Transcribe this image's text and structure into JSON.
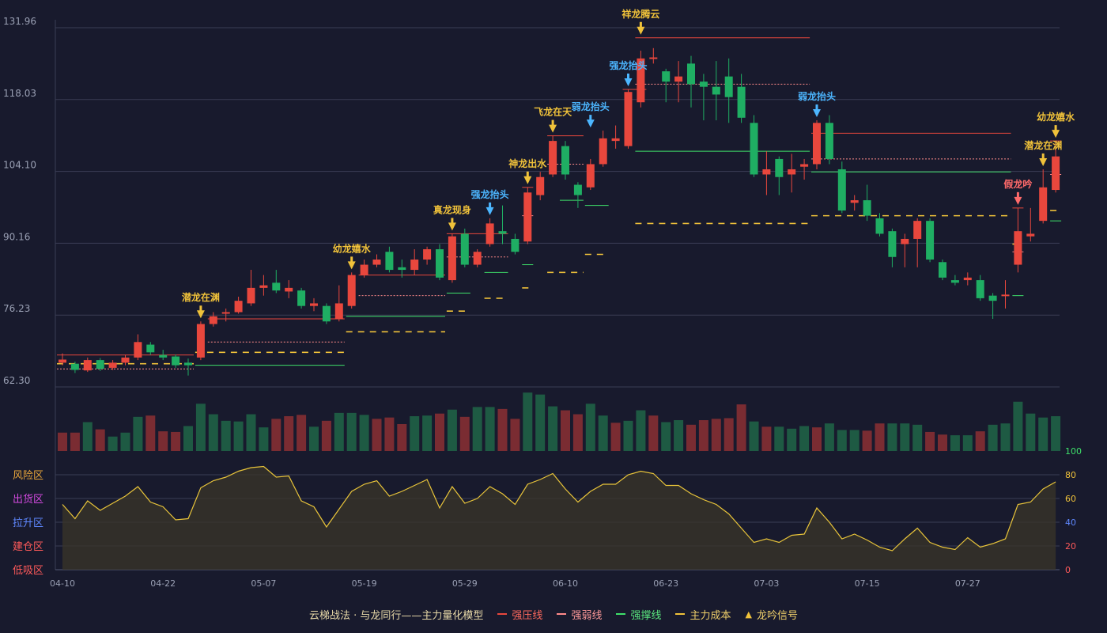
{
  "colors": {
    "up": "#e8473d",
    "down": "#1fae63",
    "resist": "#e8473d",
    "weak": "#ff8a8a",
    "support": "#3ee06a",
    "cost": "#f0c23a",
    "signal_gold": "#f0c23a",
    "signal_blue": "#4cb6ff",
    "signal_red": "#ff6a6a",
    "osc": "#e8c43a"
  },
  "legend": {
    "caption": "云梯战法 · 与龙同行——主力量化模型",
    "items": [
      {
        "label": "强压线",
        "kind": "resist"
      },
      {
        "label": "强弱线",
        "kind": "weak"
      },
      {
        "label": "强撑线",
        "kind": "support"
      },
      {
        "label": "主力成本",
        "kind": "cost"
      },
      {
        "label": "龙吟信号",
        "kind": "signal"
      }
    ]
  },
  "chart_data": {
    "type": "candlestick",
    "price_axis": {
      "ticks": [
        "131.96",
        "118.03",
        "104.10",
        "90.16",
        "76.23",
        "62.30"
      ],
      "range": [
        62.3,
        131.96
      ]
    },
    "x_ticks": [
      {
        "label": "04-10",
        "index": 0
      },
      {
        "label": "04-22",
        "index": 8
      },
      {
        "label": "05-07",
        "index": 16
      },
      {
        "label": "05-19",
        "index": 24
      },
      {
        "label": "05-29",
        "index": 32
      },
      {
        "label": "06-10",
        "index": 40
      },
      {
        "label": "06-23",
        "index": 48
      },
      {
        "label": "07-03",
        "index": 56
      },
      {
        "label": "07-15",
        "index": 64
      },
      {
        "label": "07-27",
        "index": 72
      }
    ],
    "candles": [
      [
        67.0,
        67.6,
        66.5,
        68.8
      ],
      [
        66.8,
        65.6,
        65.0,
        67.2
      ],
      [
        65.5,
        67.5,
        65.2,
        68.0
      ],
      [
        67.5,
        65.8,
        65.4,
        67.9
      ],
      [
        66.0,
        67.0,
        65.6,
        67.5
      ],
      [
        67.0,
        68.0,
        66.5,
        68.5
      ],
      [
        68.0,
        71.0,
        67.5,
        72.5
      ],
      [
        70.5,
        69.0,
        68.5,
        71.0
      ],
      [
        68.5,
        68.0,
        67.5,
        69.5
      ],
      [
        68.2,
        66.5,
        66.0,
        68.6
      ],
      [
        67.0,
        66.5,
        64.5,
        67.8
      ],
      [
        68.0,
        74.5,
        67.5,
        75.0
      ],
      [
        74.5,
        76.0,
        74.0,
        76.8
      ],
      [
        76.5,
        76.8,
        75.0,
        77.5
      ],
      [
        76.8,
        79.0,
        76.5,
        79.8
      ],
      [
        78.5,
        81.5,
        78.0,
        85.0
      ],
      [
        81.5,
        82.0,
        80.0,
        84.0
      ],
      [
        82.5,
        81.0,
        80.5,
        85.0
      ],
      [
        80.8,
        81.5,
        79.5,
        83.0
      ],
      [
        81.0,
        78.0,
        77.5,
        81.5
      ],
      [
        78.0,
        78.5,
        77.0,
        79.5
      ],
      [
        78.0,
        75.0,
        74.5,
        78.5
      ],
      [
        75.5,
        78.5,
        75.0,
        82.0
      ],
      [
        78.0,
        84.0,
        77.5,
        84.5
      ],
      [
        84.0,
        86.0,
        83.5,
        87.0
      ],
      [
        86.0,
        87.0,
        85.5,
        88.0
      ],
      [
        88.5,
        85.0,
        84.5,
        89.5
      ],
      [
        85.5,
        85.0,
        83.5,
        87.0
      ],
      [
        85.0,
        87.0,
        84.0,
        89.0
      ],
      [
        87.0,
        89.0,
        86.0,
        89.5
      ],
      [
        89.0,
        83.5,
        83.0,
        90.0
      ],
      [
        83.0,
        91.5,
        82.5,
        92.0
      ],
      [
        92.0,
        86.0,
        85.5,
        93.0
      ],
      [
        86.0,
        88.5,
        85.5,
        89.0
      ],
      [
        90.0,
        94.0,
        89.5,
        95.0
      ],
      [
        92.5,
        92.0,
        90.0,
        97.5
      ],
      [
        91.0,
        88.5,
        88.0,
        92.0
      ],
      [
        90.5,
        100.0,
        90.0,
        101.0
      ],
      [
        99.5,
        103.0,
        98.5,
        104.0
      ],
      [
        103.5,
        110.0,
        103.0,
        111.0
      ],
      [
        109.0,
        103.5,
        102.5,
        110.0
      ],
      [
        101.5,
        99.5,
        97.0,
        102.0
      ],
      [
        101.0,
        105.5,
        100.5,
        106.5
      ],
      [
        105.5,
        110.5,
        105.0,
        112.0
      ],
      [
        110.0,
        110.5,
        108.5,
        113.0
      ],
      [
        109.0,
        119.5,
        108.5,
        120.0
      ],
      [
        117.5,
        126.0,
        116.5,
        127.5
      ],
      [
        126.0,
        126.2,
        125.0,
        128.0
      ],
      [
        123.5,
        121.5,
        117.5,
        124.0
      ],
      [
        121.5,
        122.5,
        117.5,
        125.5
      ],
      [
        125.0,
        121.0,
        116.5,
        126.5
      ],
      [
        121.5,
        120.5,
        114.0,
        123.0
      ],
      [
        120.5,
        119.0,
        114.0,
        125.5
      ],
      [
        122.5,
        118.5,
        113.5,
        126.0
      ],
      [
        120.5,
        114.5,
        113.5,
        123.0
      ],
      [
        113.5,
        103.5,
        103.0,
        115.0
      ],
      [
        103.5,
        104.5,
        99.5,
        108.0
      ],
      [
        106.5,
        103.0,
        99.5,
        107.0
      ],
      [
        103.5,
        104.5,
        100.0,
        107.5
      ],
      [
        105.0,
        105.5,
        102.5,
        106.5
      ],
      [
        105.5,
        113.5,
        104.5,
        114.0
      ],
      [
        113.5,
        106.5,
        105.5,
        115.0
      ],
      [
        104.5,
        96.5,
        96.0,
        106.0
      ],
      [
        98.0,
        98.5,
        96.5,
        99.5
      ],
      [
        98.5,
        95.5,
        94.5,
        101.5
      ],
      [
        95.0,
        92.0,
        91.5,
        96.0
      ],
      [
        92.5,
        87.5,
        85.5,
        93.0
      ],
      [
        90.0,
        91.0,
        85.5,
        92.0
      ],
      [
        91.0,
        94.5,
        85.5,
        95.0
      ],
      [
        94.5,
        87.0,
        86.5,
        95.0
      ],
      [
        86.5,
        83.5,
        83.0,
        87.0
      ],
      [
        83.0,
        82.5,
        82.0,
        84.0
      ],
      [
        83.0,
        83.5,
        82.0,
        84.5
      ],
      [
        83.0,
        79.5,
        79.0,
        84.0
      ],
      [
        80.0,
        79.0,
        75.5,
        80.5
      ],
      [
        80.0,
        80.2,
        77.5,
        83.0
      ],
      [
        86.0,
        92.5,
        84.5,
        97.0
      ],
      [
        91.5,
        92.0,
        90.5,
        97.0
      ],
      [
        94.5,
        101.0,
        94.0,
        104.5
      ],
      [
        100.5,
        107.0,
        100.0,
        110.0
      ]
    ],
    "volume": [
      [
        0.28,
        "u"
      ],
      [
        0.28,
        "u"
      ],
      [
        0.44,
        "d"
      ],
      [
        0.33,
        "u"
      ],
      [
        0.22,
        "d"
      ],
      [
        0.28,
        "d"
      ],
      [
        0.52,
        "d"
      ],
      [
        0.54,
        "u"
      ],
      [
        0.3,
        "u"
      ],
      [
        0.29,
        "u"
      ],
      [
        0.38,
        "d"
      ],
      [
        0.72,
        "d"
      ],
      [
        0.56,
        "d"
      ],
      [
        0.46,
        "d"
      ],
      [
        0.45,
        "d"
      ],
      [
        0.56,
        "d"
      ],
      [
        0.36,
        "d"
      ],
      [
        0.49,
        "u"
      ],
      [
        0.53,
        "u"
      ],
      [
        0.55,
        "u"
      ],
      [
        0.37,
        "d"
      ],
      [
        0.46,
        "u"
      ],
      [
        0.58,
        "d"
      ],
      [
        0.58,
        "d"
      ],
      [
        0.55,
        "d"
      ],
      [
        0.49,
        "u"
      ],
      [
        0.51,
        "u"
      ],
      [
        0.41,
        "u"
      ],
      [
        0.53,
        "d"
      ],
      [
        0.54,
        "d"
      ],
      [
        0.57,
        "u"
      ],
      [
        0.63,
        "d"
      ],
      [
        0.52,
        "u"
      ],
      [
        0.67,
        "d"
      ],
      [
        0.67,
        "d"
      ],
      [
        0.64,
        "u"
      ],
      [
        0.49,
        "u"
      ],
      [
        0.89,
        "d"
      ],
      [
        0.86,
        "d"
      ],
      [
        0.68,
        "d"
      ],
      [
        0.62,
        "u"
      ],
      [
        0.56,
        "u"
      ],
      [
        0.72,
        "d"
      ],
      [
        0.54,
        "d"
      ],
      [
        0.43,
        "u"
      ],
      [
        0.46,
        "d"
      ],
      [
        0.62,
        "d"
      ],
      [
        0.54,
        "u"
      ],
      [
        0.44,
        "d"
      ],
      [
        0.47,
        "d"
      ],
      [
        0.4,
        "u"
      ],
      [
        0.47,
        "u"
      ],
      [
        0.49,
        "u"
      ],
      [
        0.5,
        "u"
      ],
      [
        0.71,
        "u"
      ],
      [
        0.45,
        "d"
      ],
      [
        0.37,
        "u"
      ],
      [
        0.37,
        "d"
      ],
      [
        0.34,
        "d"
      ],
      [
        0.38,
        "d"
      ],
      [
        0.36,
        "u"
      ],
      [
        0.42,
        "d"
      ],
      [
        0.32,
        "d"
      ],
      [
        0.32,
        "d"
      ],
      [
        0.31,
        "u"
      ],
      [
        0.42,
        "u"
      ],
      [
        0.42,
        "d"
      ],
      [
        0.42,
        "d"
      ],
      [
        0.4,
        "d"
      ],
      [
        0.29,
        "u"
      ],
      [
        0.25,
        "u"
      ],
      [
        0.24,
        "d"
      ],
      [
        0.24,
        "d"
      ],
      [
        0.3,
        "u"
      ],
      [
        0.4,
        "d"
      ],
      [
        0.42,
        "d"
      ],
      [
        0.75,
        "d"
      ],
      [
        0.57,
        "d"
      ],
      [
        0.51,
        "d"
      ],
      [
        0.53,
        "d"
      ]
    ],
    "oscillator": {
      "axis_ticks": [
        "100",
        "80",
        "60",
        "40",
        "20",
        "0"
      ],
      "range": [
        0,
        100
      ],
      "zones": [
        "风险区",
        "出货区",
        "拉升区",
        "建仓区",
        "低吸区"
      ],
      "zone_colors": [
        "#e8a53a",
        "#d44ae0",
        "#5f88ff",
        "#ff5a5a",
        "#ff5a5a"
      ],
      "values": [
        55,
        43,
        58,
        50,
        56,
        62,
        70,
        57,
        53,
        42,
        43,
        69,
        75,
        78,
        83,
        86,
        87,
        78,
        79,
        58,
        53,
        36,
        51,
        66,
        72,
        75,
        62,
        66,
        71,
        76,
        52,
        70,
        56,
        60,
        70,
        64,
        55,
        72,
        76,
        81,
        68,
        57,
        66,
        72,
        72,
        80,
        83,
        81,
        71,
        71,
        64,
        59,
        55,
        47,
        35,
        23,
        26,
        23,
        29,
        30,
        52,
        40,
        26,
        30,
        25,
        19,
        16,
        26,
        35,
        23,
        19,
        17,
        27,
        19,
        22,
        26,
        55,
        57,
        68,
        74
      ]
    },
    "resist_segments": [
      [
        0,
        10,
        68.5
      ],
      [
        12,
        22,
        75.5
      ],
      [
        24,
        30,
        84.0
      ],
      [
        31,
        35,
        92.0
      ],
      [
        37,
        37,
        101.0
      ],
      [
        39,
        41,
        111.0
      ],
      [
        45,
        46,
        120.0
      ],
      [
        46,
        59,
        130.0
      ],
      [
        60,
        75,
        111.5
      ],
      [
        76,
        76,
        97.0
      ],
      [
        79,
        79,
        110.0
      ]
    ],
    "weak_segments": [
      [
        0,
        10,
        65.8
      ],
      [
        12,
        22,
        71.0
      ],
      [
        24,
        30,
        80.0
      ],
      [
        31,
        35,
        87.5
      ],
      [
        37,
        37,
        95.5
      ],
      [
        39,
        41,
        105.5
      ],
      [
        46,
        59,
        121.0
      ],
      [
        60,
        75,
        106.5
      ],
      [
        76,
        76,
        88.5
      ],
      [
        79,
        79,
        103.5
      ]
    ],
    "support_segments": [
      [
        11,
        22,
        66.5
      ],
      [
        23,
        30,
        76.0
      ],
      [
        31,
        32,
        80.5
      ],
      [
        34,
        35,
        84.5
      ],
      [
        37,
        37,
        86.0
      ],
      [
        40,
        41,
        98.5
      ],
      [
        42,
        43,
        97.5
      ],
      [
        46,
        59,
        108.0
      ],
      [
        60,
        75,
        104.0
      ],
      [
        76,
        76,
        80.0
      ],
      [
        79,
        79,
        94.5
      ]
    ],
    "cost_segments": [
      [
        0,
        10,
        66.8
      ],
      [
        11,
        22,
        69.0
      ],
      [
        23,
        30,
        73.0
      ],
      [
        31,
        32,
        77.0
      ],
      [
        34,
        35,
        79.5
      ],
      [
        37,
        37,
        81.5
      ],
      [
        39,
        41,
        84.5
      ],
      [
        42,
        43,
        88.0
      ],
      [
        46,
        59,
        94.0
      ],
      [
        60,
        75,
        95.5
      ],
      [
        76,
        76,
        90.0
      ],
      [
        79,
        79,
        96.5
      ]
    ],
    "signals": [
      {
        "index": 11,
        "label": "潜龙在渊",
        "color": "gold",
        "price": 75.0
      },
      {
        "index": 23,
        "label": "幼龙嬉水",
        "color": "gold",
        "price": 84.5
      },
      {
        "index": 31,
        "label": "真龙现身",
        "color": "gold",
        "price": 92.0
      },
      {
        "index": 34,
        "label": "强龙抬头",
        "color": "blue",
        "price": 95.0
      },
      {
        "index": 37,
        "label": "神龙出水",
        "color": "gold",
        "price": 101.0
      },
      {
        "index": 39,
        "label": "飞龙在天",
        "color": "gold",
        "price": 111.0
      },
      {
        "index": 42,
        "label": "弱龙抬头",
        "color": "blue",
        "price": 112.0
      },
      {
        "index": 45,
        "label": "强龙抬头",
        "color": "blue",
        "price": 120.0
      },
      {
        "index": 46,
        "label": "祥龙腾云",
        "color": "gold",
        "price": 130.0
      },
      {
        "index": 60,
        "label": "弱龙抬头",
        "color": "blue",
        "price": 114.0
      },
      {
        "index": 76,
        "label": "假龙吟",
        "color": "red",
        "price": 97.0
      },
      {
        "index": 78,
        "label": "潜龙在渊",
        "color": "gold",
        "price": 104.5
      },
      {
        "index": 79,
        "label": "幼龙嬉水",
        "color": "gold",
        "price": 110.0
      }
    ]
  }
}
